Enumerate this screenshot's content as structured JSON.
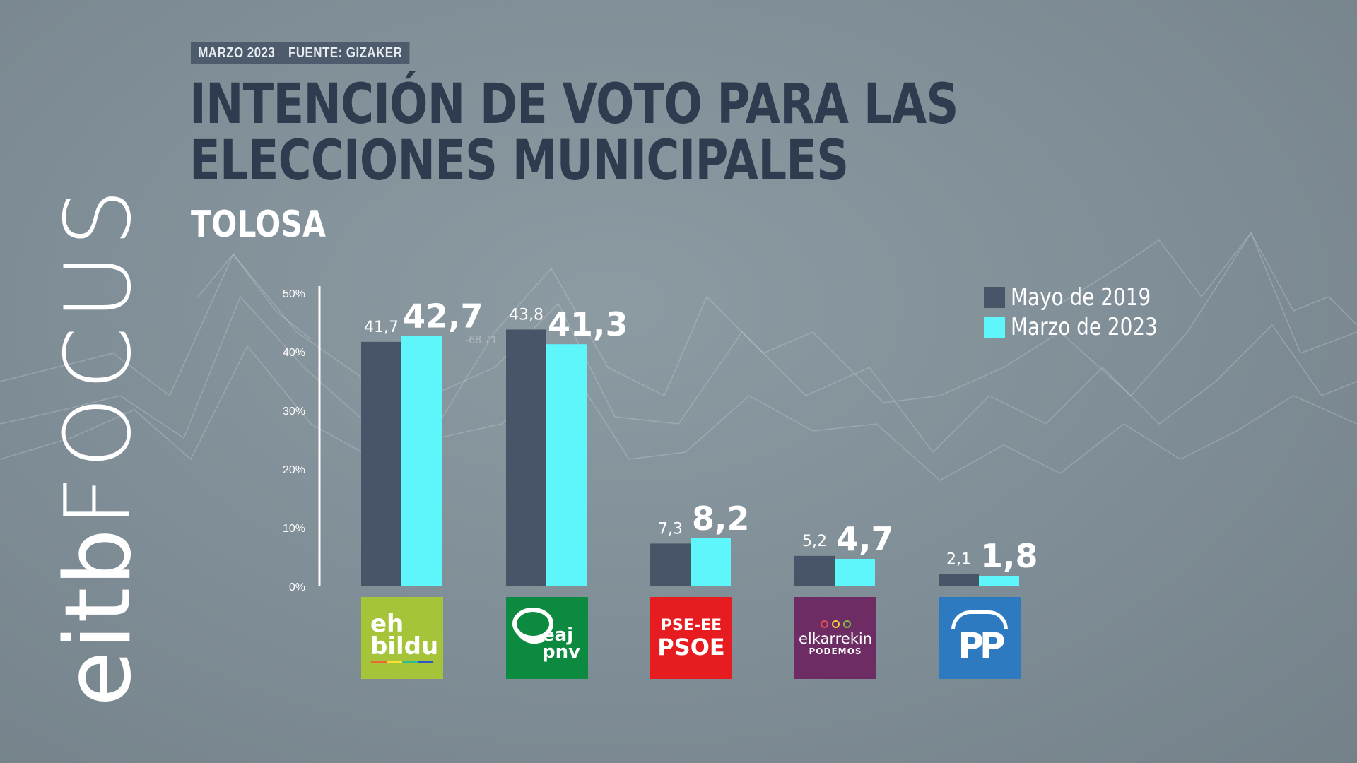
{
  "brand": {
    "logo_prefix": "eitb",
    "logo_suffix": "FOCUS"
  },
  "meta": {
    "date": "MARZO 2023",
    "source": "FUENTE: GIZAKER"
  },
  "header": {
    "title": "INTENCIÓN DE VOTO PARA LAS ELECCIONES MUNICIPALES",
    "subtitle": "TOLOSA"
  },
  "background_text": "-68.71",
  "colors": {
    "series_2019": "#485468",
    "series_2023": "#5ef6fb",
    "axis": "#ffffff",
    "title": "#2f3b4e"
  },
  "chart_data": {
    "type": "bar",
    "title": "INTENCIÓN DE VOTO PARA LAS ELECCIONES MUNICIPALES",
    "subtitle": "TOLOSA",
    "ylim": [
      0,
      50
    ],
    "yticks": [
      "0%",
      "10%",
      "20%",
      "30%",
      "40%",
      "50%"
    ],
    "legend_position": "top-right",
    "categories": [
      "EH Bildu",
      "EAJ-PNV",
      "PSE-EE PSOE",
      "Elkarrekin Podemos",
      "PP"
    ],
    "series": [
      {
        "name": "Mayo de 2019",
        "values": [
          41.7,
          43.8,
          7.3,
          5.2,
          2.1
        ],
        "labels": [
          "41,7",
          "43,8",
          "7,3",
          "5,2",
          "2,1"
        ],
        "color": "#485468"
      },
      {
        "name": "Marzo de 2023",
        "values": [
          42.7,
          41.3,
          8.2,
          4.7,
          1.8
        ],
        "labels": [
          "42,7",
          "41,3",
          "8,2",
          "4,7",
          "1,8"
        ],
        "color": "#5ef6fb"
      }
    ]
  },
  "party_logos": {
    "bildu": {
      "line1": "eh",
      "line2": "bildu"
    },
    "pnv": {
      "line1": "eaj",
      "line2": "pnv"
    },
    "psoe": {
      "line1": "PSE-EE",
      "line2": "PSOE"
    },
    "podemos": {
      "line1": "elkarrekin",
      "line2": "PODEMOS"
    },
    "pp": {
      "text": "PP"
    }
  }
}
